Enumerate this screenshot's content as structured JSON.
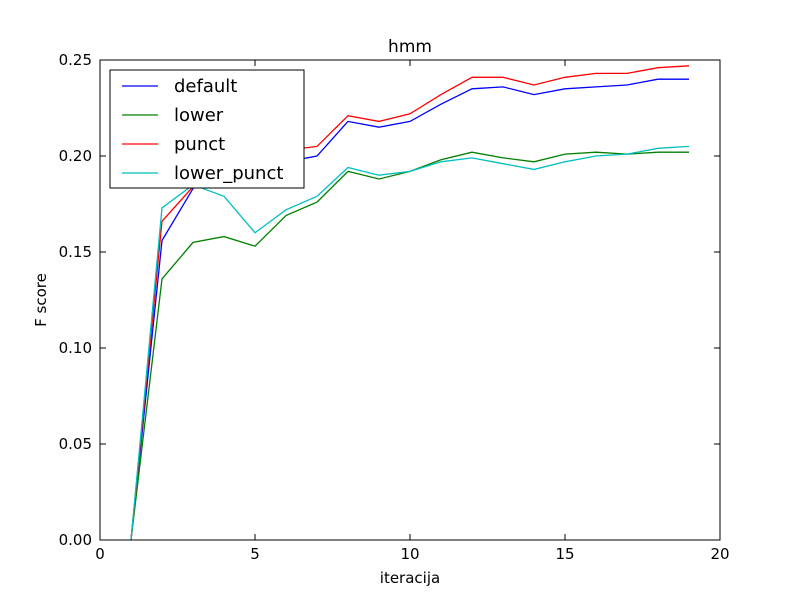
{
  "chart_data": {
    "type": "line",
    "title": "hmm",
    "xlabel": "iteracija",
    "ylabel": "F score",
    "xlim": [
      0,
      20
    ],
    "ylim": [
      0,
      0.25
    ],
    "xticks": [
      0,
      5,
      10,
      15,
      20
    ],
    "xtick_labels": [
      "0",
      "5",
      "10",
      "15",
      "20"
    ],
    "yticks": [
      0,
      0.05,
      0.1,
      0.15,
      0.2,
      0.25
    ],
    "ytick_labels": [
      "0.00",
      "0.05",
      "0.10",
      "0.15",
      "0.20",
      "0.25"
    ],
    "grid": false,
    "legend_position": "top-left",
    "x": [
      1,
      2,
      3,
      4,
      5,
      6,
      7,
      8,
      9,
      10,
      11,
      12,
      13,
      14,
      15,
      16,
      17,
      18,
      19
    ],
    "series": [
      {
        "name": "default",
        "color": "#0000ff",
        "values": [
          0.0,
          0.156,
          0.183,
          0.2,
          0.196,
          0.197,
          0.2,
          0.218,
          0.215,
          0.218,
          0.227,
          0.235,
          0.236,
          0.232,
          0.235,
          0.236,
          0.237,
          0.24,
          0.24
        ]
      },
      {
        "name": "lower",
        "color": "#008000",
        "values": [
          0.0,
          0.136,
          0.155,
          0.158,
          0.153,
          0.169,
          0.176,
          0.192,
          0.188,
          0.192,
          0.198,
          0.202,
          0.199,
          0.197,
          0.201,
          0.202,
          0.201,
          0.202,
          0.202
        ]
      },
      {
        "name": "punct",
        "color": "#ff0000",
        "values": [
          0.0,
          0.166,
          0.184,
          0.201,
          0.197,
          0.203,
          0.205,
          0.221,
          0.218,
          0.222,
          0.232,
          0.241,
          0.241,
          0.237,
          0.241,
          0.243,
          0.243,
          0.246,
          0.247
        ]
      },
      {
        "name": "lower_punct",
        "color": "#00bfbf",
        "values": [
          0.0,
          0.173,
          0.185,
          0.179,
          0.16,
          0.172,
          0.179,
          0.194,
          0.19,
          0.192,
          0.197,
          0.199,
          0.196,
          0.193,
          0.197,
          0.2,
          0.201,
          0.204,
          0.205
        ]
      }
    ]
  }
}
